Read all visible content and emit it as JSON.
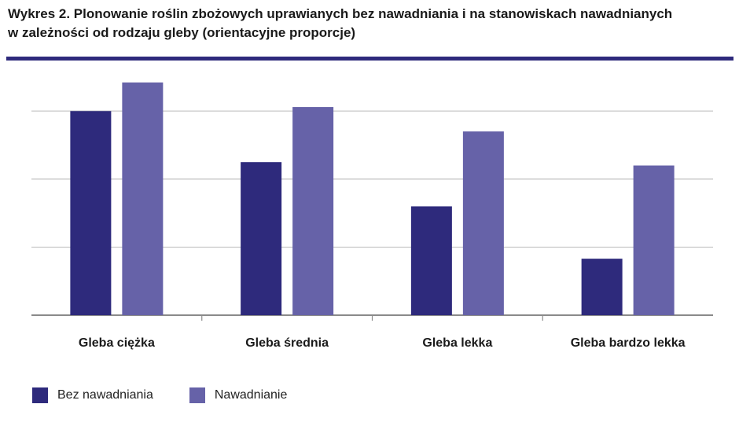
{
  "title_line1": "Wykres 2. Plonowanie roślin zbożowych uprawianych bez nawadniania i na stanowiskach nawadnianych",
  "title_line2": "w zależności od rodzaju gleby (orientacyjne proporcje)",
  "colors": {
    "rule": "#2e2a7c",
    "grid": "#c4c4c4",
    "axis": "#8a8a8a"
  },
  "chart_data": {
    "type": "bar",
    "title": "Wykres 2. Plonowanie roślin zbożowych uprawianych bez nawadniania i na stanowiskach nawadnianych w zależności od rodzaju gleby (orientacyjne proporcje)",
    "categories": [
      "Gleba ciężka",
      "Gleba średnia",
      "Gleba lekka",
      "Gleba bardzo lekka"
    ],
    "series": [
      {
        "name": "Bez nawadniania",
        "color": "#2e2a7c",
        "values": [
          3.0,
          2.25,
          1.6,
          0.83
        ]
      },
      {
        "name": "Nawadnianie",
        "color": "#6662a8",
        "values": [
          3.42,
          3.06,
          2.7,
          2.2
        ]
      }
    ],
    "ylim": [
      0,
      3.5
    ],
    "grid": true,
    "y_tick_labels": false,
    "legend": "bottom-left",
    "xlabel": "",
    "ylabel": ""
  }
}
